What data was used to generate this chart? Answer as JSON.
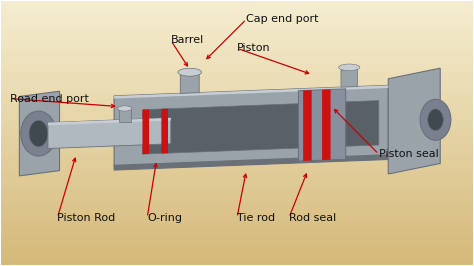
{
  "bg_color_top": "#f5edd0",
  "bg_color_bot": "#d4b878",
  "cylinder_gray": "#9aa2aa",
  "cylinder_light": "#c8cdd4",
  "cylinder_dark": "#6a7078",
  "cylinder_mid": "#8890a0",
  "rod_gray": "#b0b8c0",
  "seal_red": "#cc1111",
  "bore_dark": "#5a6068",
  "bore_mid": "#787e88",
  "labels": {
    "cap_end_port": "Cap end port",
    "barrel": "Barrel",
    "piston": "Piston",
    "road_end_port": "Road end port",
    "piston_rod": "Piston Rod",
    "o_ring": "O-ring",
    "tie_rod": "Tie rod",
    "rod_seal": "Rod seal",
    "piston_seal": "Piston seal"
  },
  "font_size": 8.0,
  "text_color": "#111111",
  "arrow_color": "#cc0000"
}
